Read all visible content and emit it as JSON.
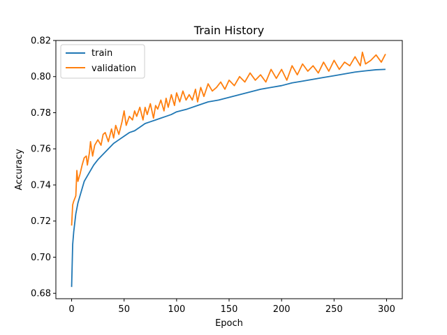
{
  "chart_data": {
    "type": "line",
    "title": "Train History",
    "xlabel": "Epoch",
    "ylabel": "Accuracy",
    "xlim": [
      -15,
      315
    ],
    "ylim": [
      0.677,
      0.82
    ],
    "xticks": [
      0,
      50,
      100,
      150,
      200,
      250,
      300
    ],
    "yticks": [
      0.68,
      0.7,
      0.72,
      0.74,
      0.76,
      0.78,
      0.8,
      0.82
    ],
    "legend_position": "top-left",
    "grid": false,
    "series": [
      {
        "name": "train",
        "color": "#1f77b4",
        "x": [
          0,
          1,
          2,
          4,
          6,
          8,
          10,
          12,
          15,
          18,
          21,
          25,
          30,
          35,
          40,
          45,
          50,
          55,
          60,
          65,
          70,
          75,
          80,
          85,
          90,
          95,
          100,
          110,
          120,
          130,
          140,
          150,
          160,
          170,
          180,
          190,
          200,
          210,
          220,
          230,
          240,
          250,
          260,
          270,
          280,
          290,
          299
        ],
        "y": [
          0.6835,
          0.707,
          0.714,
          0.724,
          0.73,
          0.734,
          0.738,
          0.742,
          0.745,
          0.748,
          0.751,
          0.754,
          0.757,
          0.76,
          0.763,
          0.765,
          0.767,
          0.769,
          0.77,
          0.772,
          0.774,
          0.775,
          0.776,
          0.777,
          0.778,
          0.779,
          0.7805,
          0.782,
          0.784,
          0.786,
          0.787,
          0.7885,
          0.79,
          0.7915,
          0.793,
          0.794,
          0.795,
          0.7965,
          0.7975,
          0.7985,
          0.7995,
          0.8005,
          0.8015,
          0.8025,
          0.8032,
          0.8038,
          0.804
        ]
      },
      {
        "name": "validation",
        "color": "#ff7f0e",
        "x": [
          0,
          1,
          2,
          4,
          5,
          6,
          8,
          10,
          12,
          14,
          15,
          17,
          18,
          20,
          22,
          25,
          28,
          30,
          32,
          35,
          38,
          40,
          42,
          45,
          48,
          50,
          52,
          55,
          58,
          60,
          62,
          65,
          68,
          70,
          72,
          75,
          78,
          80,
          82,
          85,
          88,
          90,
          92,
          95,
          98,
          100,
          103,
          106,
          109,
          112,
          115,
          118,
          120,
          123,
          126,
          130,
          134,
          138,
          142,
          146,
          150,
          155,
          160,
          165,
          170,
          175,
          180,
          185,
          190,
          195,
          200,
          205,
          210,
          215,
          220,
          225,
          230,
          235,
          240,
          245,
          250,
          255,
          260,
          265,
          270,
          275,
          277,
          280,
          285,
          290,
          295,
          299
        ],
        "y": [
          0.7175,
          0.729,
          0.731,
          0.734,
          0.748,
          0.742,
          0.746,
          0.751,
          0.755,
          0.756,
          0.751,
          0.758,
          0.764,
          0.756,
          0.762,
          0.765,
          0.762,
          0.768,
          0.769,
          0.764,
          0.771,
          0.766,
          0.773,
          0.768,
          0.775,
          0.781,
          0.773,
          0.778,
          0.776,
          0.781,
          0.778,
          0.783,
          0.776,
          0.783,
          0.779,
          0.785,
          0.777,
          0.784,
          0.782,
          0.787,
          0.781,
          0.788,
          0.783,
          0.79,
          0.784,
          0.791,
          0.786,
          0.792,
          0.787,
          0.79,
          0.787,
          0.793,
          0.786,
          0.794,
          0.789,
          0.796,
          0.792,
          0.794,
          0.797,
          0.793,
          0.798,
          0.795,
          0.8,
          0.797,
          0.802,
          0.798,
          0.801,
          0.797,
          0.804,
          0.799,
          0.804,
          0.798,
          0.806,
          0.801,
          0.807,
          0.803,
          0.806,
          0.802,
          0.808,
          0.803,
          0.809,
          0.804,
          0.808,
          0.806,
          0.811,
          0.806,
          0.8135,
          0.807,
          0.809,
          0.812,
          0.808,
          0.8125
        ]
      }
    ]
  }
}
